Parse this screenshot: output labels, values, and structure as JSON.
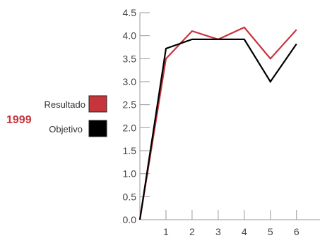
{
  "colors": {
    "resultado": "#c8343c",
    "objetivo": "#000000",
    "axis": "#999999",
    "year": "#c8343c"
  },
  "chart_data": {
    "type": "line",
    "title": "",
    "xlabel": "",
    "ylabel": "",
    "year_label": "1999",
    "x": [
      0,
      1,
      2,
      3,
      4,
      5,
      6
    ],
    "x_tick_labels": [
      "1",
      "2",
      "3",
      "4",
      "5",
      "6"
    ],
    "y_tick_labels": [
      "0.0",
      "0.5",
      "1.0",
      "1.5",
      "2.0",
      "2.5",
      "3.0",
      "3.5",
      "4.0",
      "4.5"
    ],
    "ylim": [
      0,
      4.5
    ],
    "xlim": [
      0,
      6.9
    ],
    "grid": false,
    "legend_position": "left",
    "series": [
      {
        "name": "Resultado",
        "color_key": "resultado",
        "values": [
          0.0,
          3.5,
          4.1,
          3.92,
          4.18,
          3.5,
          4.13
        ]
      },
      {
        "name": "Objetivo",
        "color_key": "objetivo",
        "values": [
          0.0,
          3.72,
          3.92,
          3.92,
          3.92,
          3.0,
          3.82
        ]
      }
    ]
  }
}
